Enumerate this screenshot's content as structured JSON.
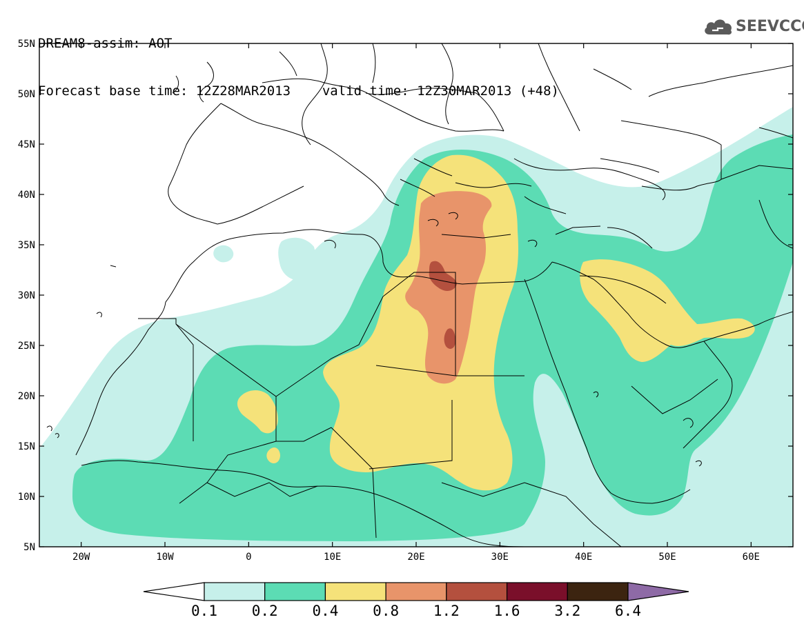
{
  "header": {
    "line1": "DREAM8-assim: AOT",
    "line2_base": "Forecast base time: 12Z28MAR2013",
    "line2_valid": "valid time: 12Z30MAR2013 (+48)"
  },
  "logo": {
    "text": "SEEVCCC",
    "icon": "cloud-icon",
    "color": "#5a5a5a"
  },
  "map": {
    "lon_range": [
      -25,
      65
    ],
    "lat_range": [
      5,
      55
    ],
    "lat_ticks": [
      "5N",
      "10N",
      "15N",
      "20N",
      "25N",
      "30N",
      "35N",
      "40N",
      "45N",
      "50N",
      "55N"
    ],
    "lon_ticks": [
      "20W",
      "10W",
      "0",
      "10E",
      "20E",
      "30E",
      "40E",
      "50E",
      "60E"
    ]
  },
  "legend": {
    "colors": [
      "#ffffff",
      "#c6f0ea",
      "#5cdcb4",
      "#f5e27a",
      "#e8946a",
      "#b4503e",
      "#7a0f2a",
      "#3c2410",
      "#8e6aa6"
    ],
    "labels": [
      "0.1",
      "0.2",
      "0.4",
      "0.8",
      "1.2",
      "1.6",
      "3.2",
      "6.4"
    ]
  }
}
